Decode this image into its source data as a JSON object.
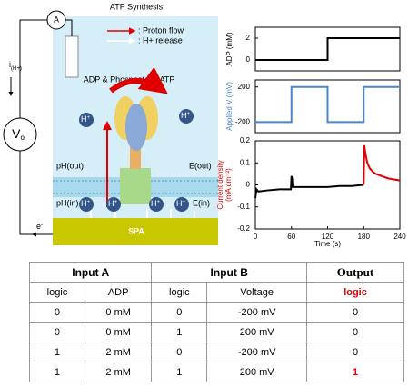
{
  "diagram": {
    "title": "ATP Synthesis",
    "legend": [
      ": Proton flow",
      ": H+ release"
    ],
    "ammeter": "A",
    "voltmeter": "V",
    "voltmeter_sub": "o",
    "current_label": "i",
    "current_sub": "(H+)",
    "substrate": "ADP & Phosphate",
    "product": "ATP",
    "proton": "H",
    "proton_charge": "+",
    "ph_out": "pH(out)",
    "e_out": "E(out)",
    "ph_in": "pH(in)",
    "e_in": "E(in)",
    "electrode": "SPA",
    "electron": "e",
    "electron_charge": "-"
  },
  "chart_data": [
    {
      "type": "line",
      "ylabel": "ADP (mM)",
      "xlim": [
        0,
        240
      ],
      "ylim": [
        -1,
        3
      ],
      "yticks": [
        0,
        2
      ],
      "series": [
        {
          "color": "#000000",
          "x": [
            0,
            120,
            120,
            240
          ],
          "values": [
            0,
            0,
            2,
            2
          ]
        }
      ]
    },
    {
      "type": "line",
      "ylabel": "Applied V (mV)",
      "xlim": [
        0,
        240
      ],
      "ylim": [
        -320,
        280
      ],
      "yticks": [
        -200,
        200
      ],
      "series": [
        {
          "color": "#4a86c8",
          "x": [
            0,
            60,
            60,
            120,
            120,
            180,
            180,
            240
          ],
          "values": [
            -200,
            -200,
            200,
            200,
            -200,
            -200,
            200,
            200
          ]
        }
      ]
    },
    {
      "type": "line",
      "ylabel": "Current density",
      "ylabel_unit": "(mA cm⁻²)",
      "xlabel": "Time (s)",
      "xlim": [
        0,
        240
      ],
      "ylim": [
        -0.2,
        0.2
      ],
      "xticks": [
        0,
        60,
        120,
        180,
        240
      ],
      "yticks": [
        -0.2,
        -0.1,
        0,
        0.1,
        0.2
      ],
      "series": [
        {
          "color": "#000000",
          "x": [
            0,
            2,
            5,
            20,
            40,
            59,
            60,
            61,
            62,
            80,
            100,
            120,
            140,
            160,
            179
          ],
          "values": [
            -0.06,
            -0.02,
            -0.03,
            -0.025,
            -0.02,
            -0.02,
            0.04,
            0.03,
            -0.01,
            -0.01,
            -0.01,
            -0.01,
            -0.005,
            -0.005,
            0
          ]
        },
        {
          "color": "#e00000",
          "x": [
            180,
            181,
            183,
            186,
            190,
            195,
            200,
            210,
            220,
            240
          ],
          "values": [
            0,
            0.18,
            0.14,
            0.1,
            0.075,
            0.06,
            0.05,
            0.04,
            0.03,
            0.02
          ]
        }
      ]
    }
  ],
  "table": {
    "header": [
      "Input A",
      "Input B",
      "Output"
    ],
    "subheader": [
      "logic",
      "ADP",
      "logic",
      "Voltage",
      "logic"
    ],
    "rows": [
      [
        "0",
        "0 mM",
        "0",
        "-200  mV",
        "0"
      ],
      [
        "0",
        "0 mM",
        "1",
        "200 mV",
        "0"
      ],
      [
        "1",
        "2 mM",
        "0",
        "-200  mV",
        "0"
      ],
      [
        "1",
        "2 mM",
        "1",
        "200 mV",
        "1"
      ]
    ]
  }
}
